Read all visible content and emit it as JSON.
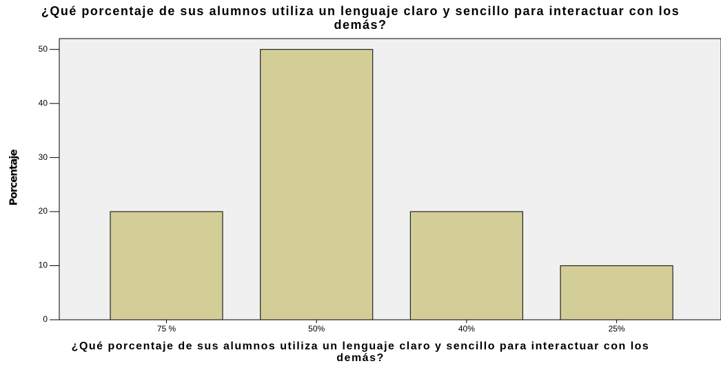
{
  "chart_data": {
    "type": "bar",
    "title": "¿Qué porcentaje de sus alumnos utiliza un lenguaje claro y sencillo para interactuar con los demás?",
    "x_label": "¿Qué porcentaje de sus alumnos utiliza un lenguaje claro y sencillo para interactuar con los demás?",
    "y_label": "Porcentaje",
    "categories": [
      "75 %",
      "50%",
      "40%",
      "25%"
    ],
    "values": [
      20,
      50,
      20,
      10
    ],
    "color": "#d3ce97",
    "ylim": [
      0,
      52
    ],
    "yticks": [
      0,
      10,
      20,
      30,
      40,
      50
    ],
    "grid": false
  }
}
